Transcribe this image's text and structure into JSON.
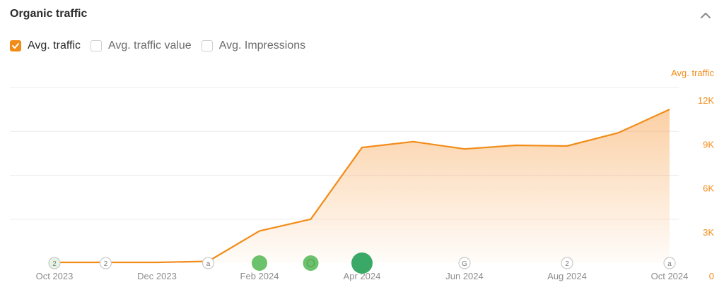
{
  "header": {
    "title": "Organic traffic",
    "collapse_icon": "chevron-up-icon"
  },
  "legend": [
    {
      "label": "Avg. traffic",
      "checked": true
    },
    {
      "label": "Avg. traffic value",
      "checked": false
    },
    {
      "label": "Avg. Impressions",
      "checked": false
    }
  ],
  "colors": {
    "accent": "#f28c18",
    "grid": "#ececec",
    "marker_border": "#c9c9c9",
    "marker_green": "#6cc16c",
    "marker_green_dark": "#3aa866"
  },
  "chart_data": {
    "type": "area",
    "ylabel": "Avg. traffic",
    "y_axis_position": "right",
    "ylim": [
      0,
      12000
    ],
    "yticks": [
      0,
      3000,
      6000,
      9000,
      12000
    ],
    "ytick_labels": [
      "0",
      "3K",
      "6K",
      "9K",
      "12K"
    ],
    "xtick_labels": [
      "Oct 2023",
      "Dec 2023",
      "Feb 2024",
      "Apr 2024",
      "Jun 2024",
      "Aug 2024",
      "Oct 2024"
    ],
    "x": [
      "2023-10",
      "2023-11",
      "2023-12",
      "2024-01",
      "2024-02",
      "2024-03",
      "2024-04",
      "2024-05",
      "2024-06",
      "2024-07",
      "2024-08",
      "2024-09",
      "2024-10"
    ],
    "series": [
      {
        "values": [
          50,
          50,
          50,
          120,
          2200,
          3000,
          7900,
          8300,
          7800,
          8050,
          8000,
          8900,
          10500
        ]
      }
    ],
    "grid": true,
    "events": [
      {
        "x": "2023-10",
        "label": "2",
        "style": "outline-green"
      },
      {
        "x": "2023-11",
        "label": "2",
        "style": "outline"
      },
      {
        "x": "2024-01",
        "label": "a",
        "style": "outline"
      },
      {
        "x": "2024-02",
        "label": "",
        "style": "green"
      },
      {
        "x": "2024-03",
        "label": "",
        "style": "green-dot"
      },
      {
        "x": "2024-04",
        "label": "",
        "style": "green-large"
      },
      {
        "x": "2024-06",
        "label": "G",
        "style": "outline"
      },
      {
        "x": "2024-08",
        "label": "2",
        "style": "outline"
      },
      {
        "x": "2024-10",
        "label": "a",
        "style": "outline"
      }
    ]
  }
}
